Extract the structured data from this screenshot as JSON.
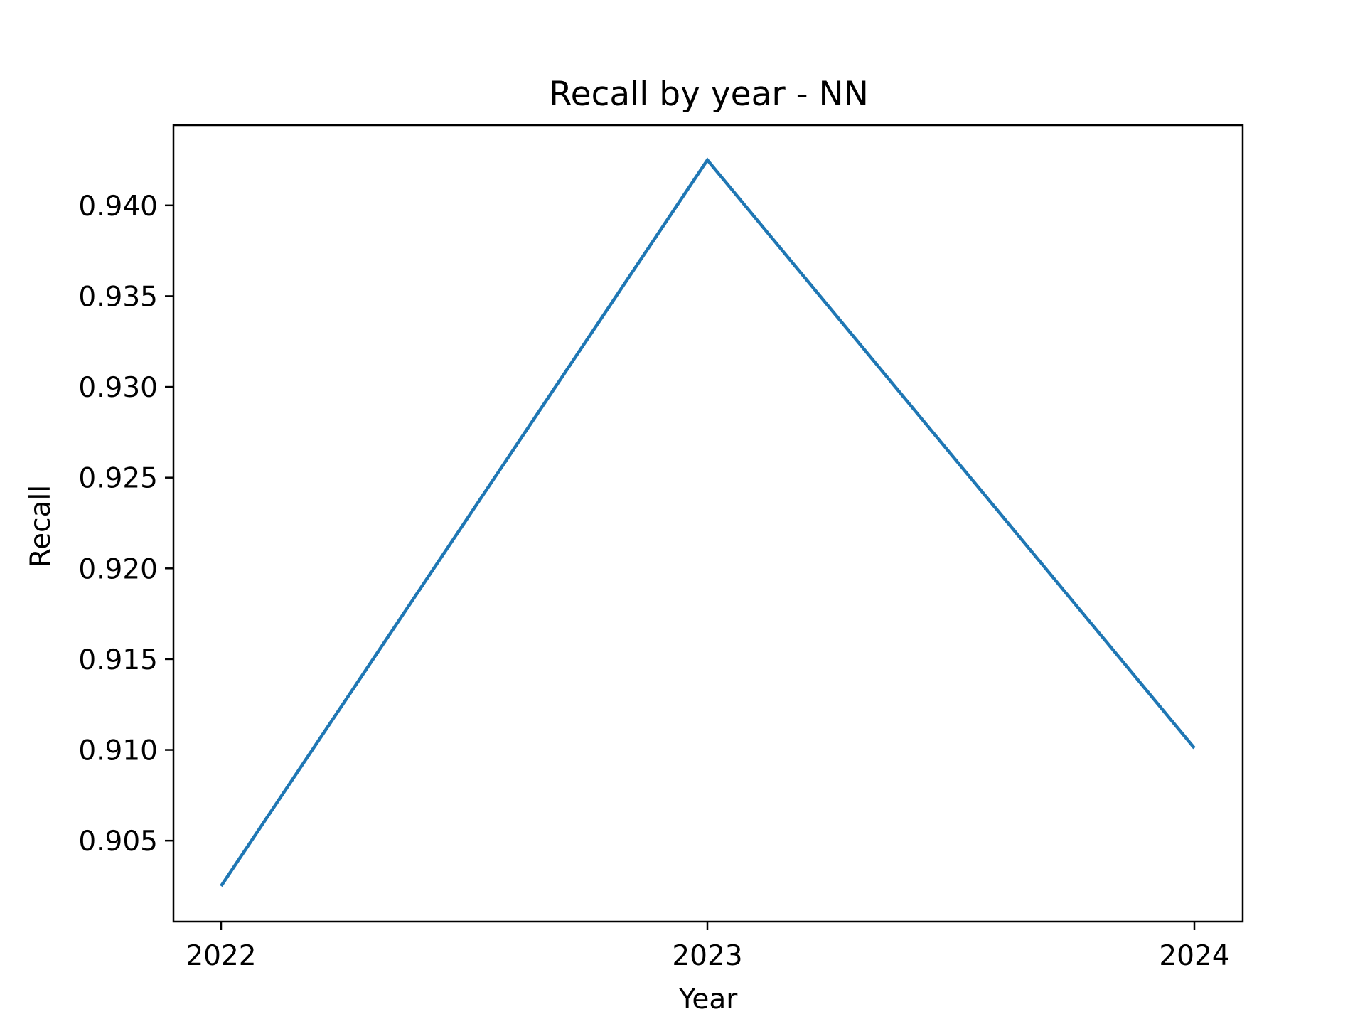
{
  "chart_data": {
    "type": "line",
    "title": "Recall by year - NN",
    "xlabel": "Year",
    "ylabel": "Recall",
    "x": [
      "2022",
      "2023",
      "2024"
    ],
    "series": [
      {
        "values": [
          0.9025,
          0.9425,
          0.9101
        ],
        "color": "#1f77b4"
      }
    ],
    "ylim": [
      0.90054,
      0.94442
    ],
    "y_ticks": [
      0.905,
      0.91,
      0.915,
      0.92,
      0.925,
      0.93,
      0.935,
      0.94
    ],
    "y_tick_labels": [
      "0.905",
      "0.910",
      "0.915",
      "0.920",
      "0.925",
      "0.930",
      "0.935",
      "0.940"
    ],
    "grid": false,
    "legend": "none"
  }
}
